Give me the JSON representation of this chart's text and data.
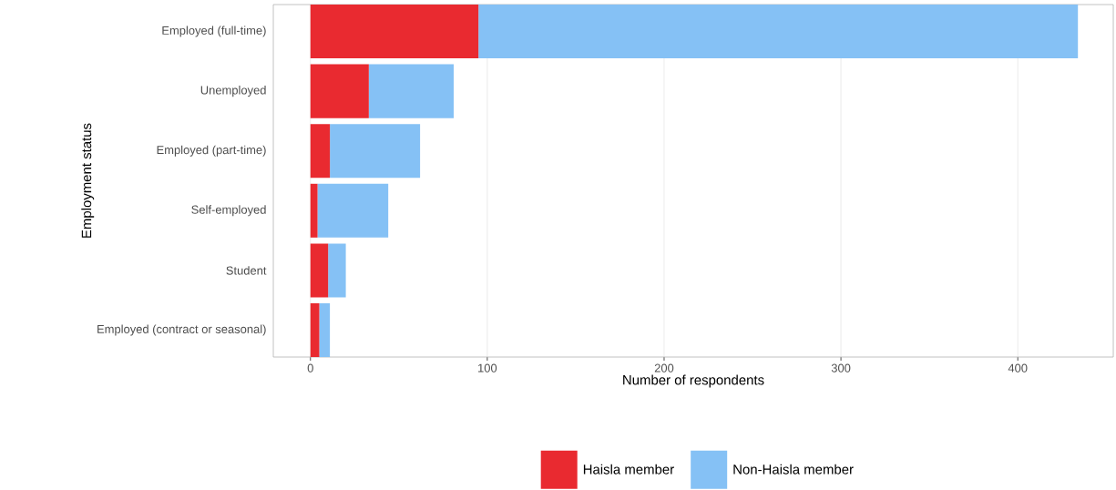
{
  "chart_data": {
    "type": "bar",
    "orientation": "horizontal",
    "stacked": true,
    "categories": [
      "Employed (full-time)",
      "Unemployed",
      "Employed (part-time)",
      "Self-employed",
      "Student",
      "Employed (contract or seasonal)"
    ],
    "series": [
      {
        "name": "Haisla member",
        "color": "#e92a30",
        "values": [
          95,
          33,
          11,
          4,
          10,
          5
        ]
      },
      {
        "name": "Non-Haisla member",
        "color": "#85c1f5",
        "values": [
          339,
          48,
          51,
          40,
          10,
          6
        ]
      }
    ],
    "xlabel": "Number of respondents",
    "ylabel": "Employment status",
    "xlim": [
      -21,
      454
    ],
    "xticks": [
      0,
      100,
      200,
      300,
      400
    ],
    "grid": "x",
    "legend": "bottom"
  }
}
